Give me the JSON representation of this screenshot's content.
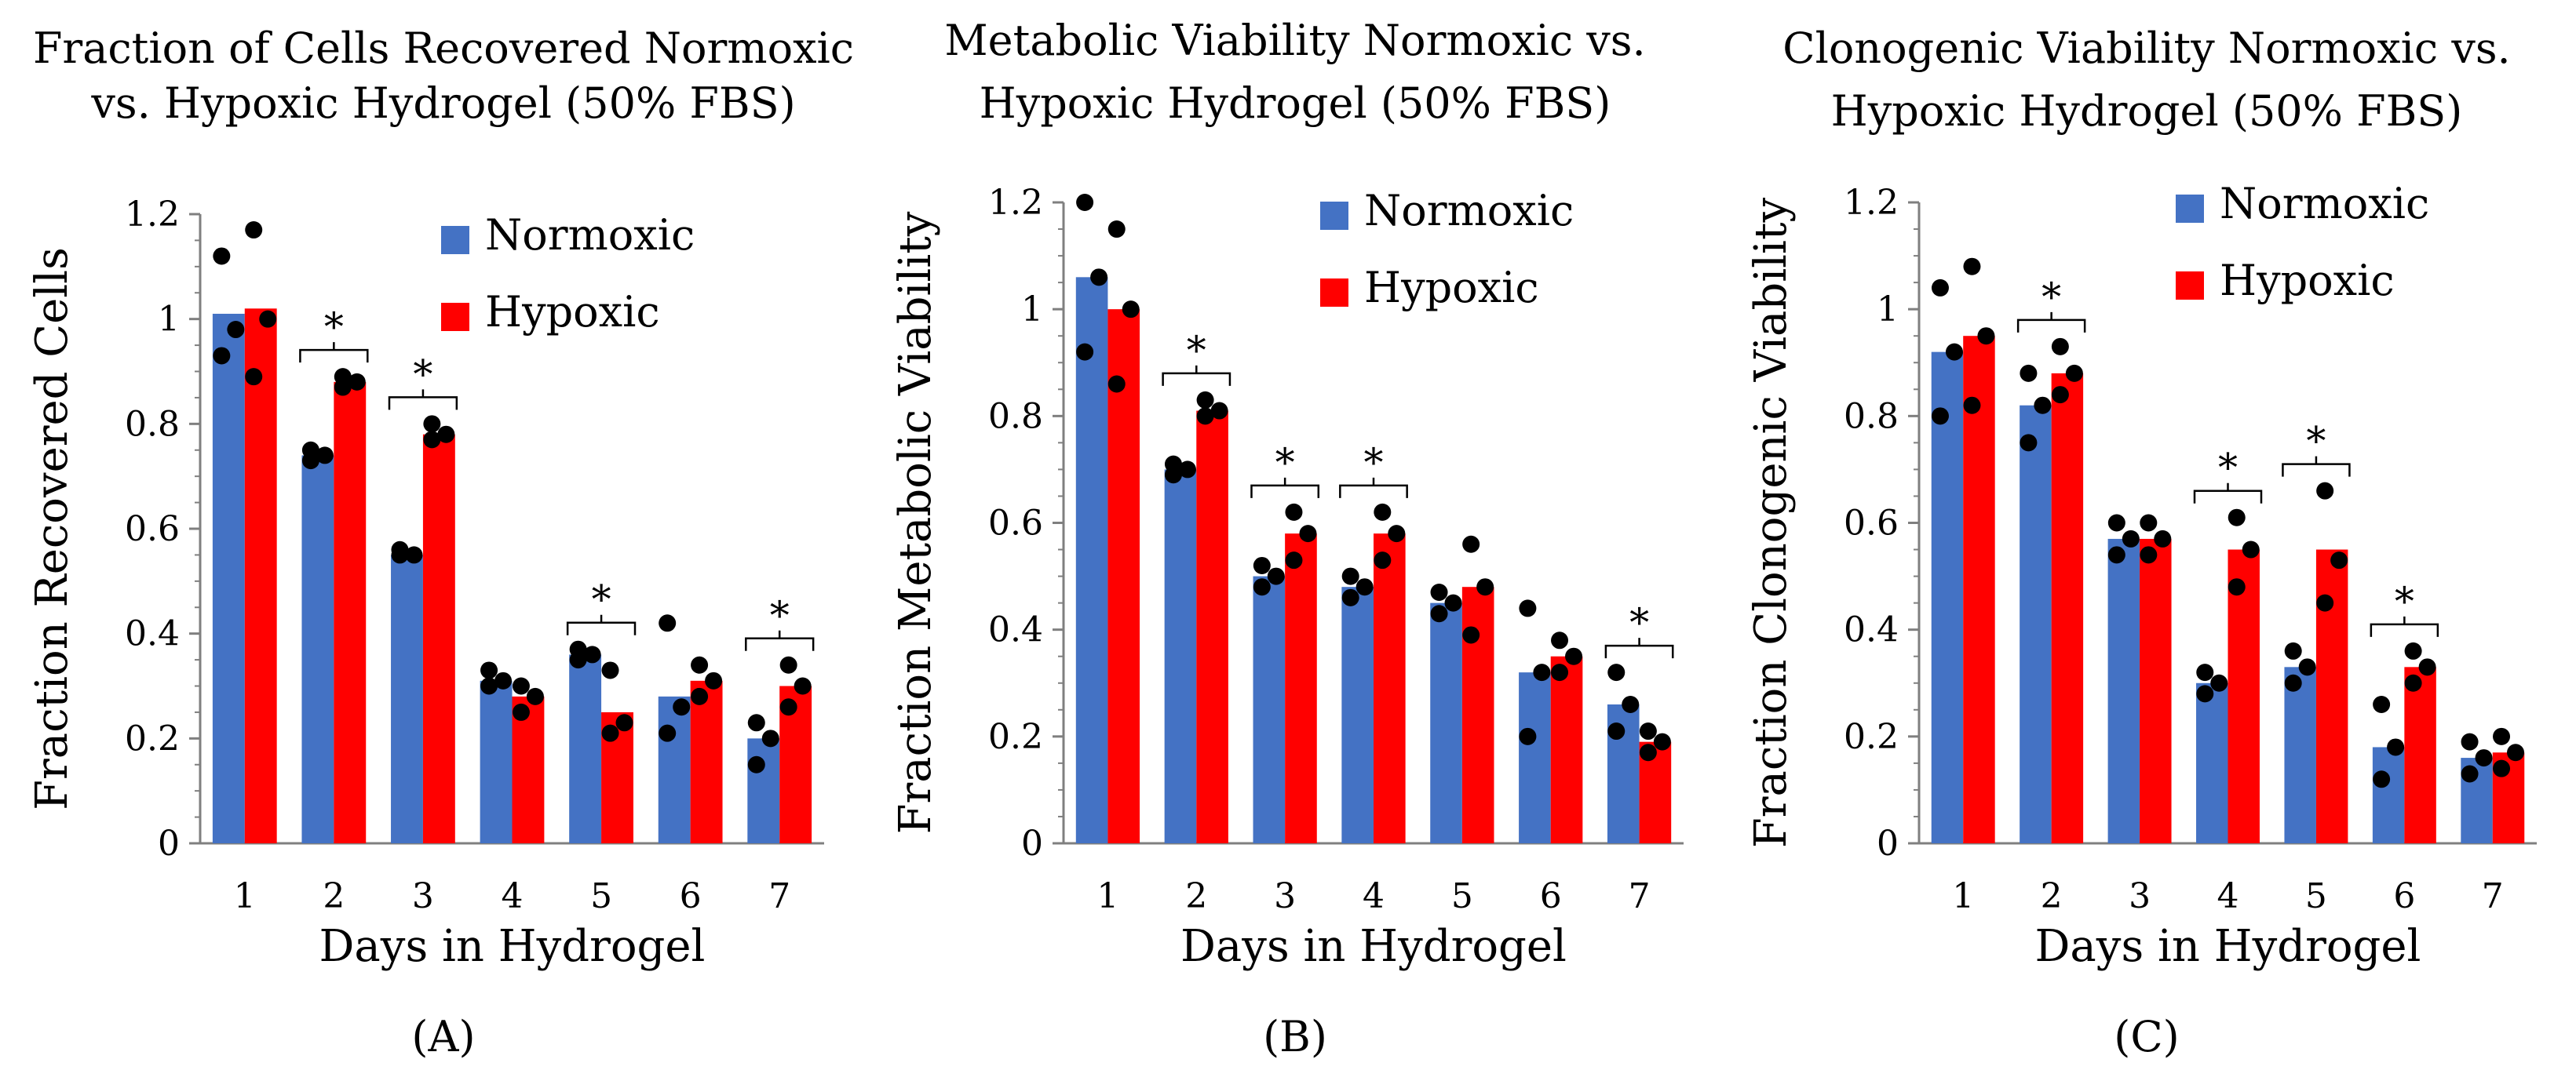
{
  "colors": {
    "normoxic": "#4472C4",
    "hypoxic": "#FF0000",
    "dot": "#000000",
    "axis": "#7f7f7f"
  },
  "chart_data": [
    {
      "type": "bar",
      "panel_label": "(A)",
      "title_lines": [
        "Fraction of Cells Recovered Normoxic",
        "vs. Hypoxic Hydrogel (50% FBS)"
      ],
      "xlabel": "Days in Hydrogel",
      "ylabel": "Fraction Recovered Cells",
      "ylim": [
        0,
        1.2
      ],
      "yticks": [
        "0",
        "0.2",
        "0.4",
        "0.6",
        "0.8",
        "1",
        "1.2"
      ],
      "categories": [
        "1",
        "2",
        "3",
        "4",
        "5",
        "6",
        "7"
      ],
      "series": [
        {
          "name": "Normoxic",
          "values": [
            1.01,
            0.74,
            0.55,
            0.31,
            0.36,
            0.28,
            0.2
          ],
          "points": [
            [
              0.93,
              0.98,
              1.12
            ],
            [
              0.73,
              0.74,
              0.75
            ],
            [
              0.55,
              0.55,
              0.56
            ],
            [
              0.3,
              0.31,
              0.33
            ],
            [
              0.35,
              0.36,
              0.37
            ],
            [
              0.21,
              0.26,
              0.42
            ],
            [
              0.15,
              0.2,
              0.23
            ]
          ]
        },
        {
          "name": "Hypoxic",
          "values": [
            1.02,
            0.88,
            0.78,
            0.28,
            0.25,
            0.31,
            0.3
          ],
          "points": [
            [
              0.89,
              1.0,
              1.17
            ],
            [
              0.87,
              0.88,
              0.89
            ],
            [
              0.77,
              0.78,
              0.8
            ],
            [
              0.25,
              0.28,
              0.3
            ],
            [
              0.21,
              0.23,
              0.33
            ],
            [
              0.28,
              0.31,
              0.34
            ],
            [
              0.26,
              0.3,
              0.34
            ]
          ]
        }
      ],
      "significance": [
        "2",
        "3",
        "5",
        "7"
      ],
      "legend": [
        "Normoxic",
        "Hypoxic"
      ]
    },
    {
      "type": "bar",
      "panel_label": "(B)",
      "title_lines": [
        "Metabolic Viability Normoxic vs.",
        "Hypoxic Hydrogel (50% FBS)"
      ],
      "xlabel": "Days in Hydrogel",
      "ylabel": "Fraction Metabolic Viability",
      "ylim": [
        0,
        1.2
      ],
      "yticks": [
        "0",
        "0.2",
        "0.4",
        "0.6",
        "0.8",
        "1",
        "1.2"
      ],
      "categories": [
        "1",
        "2",
        "3",
        "4",
        "5",
        "6",
        "7"
      ],
      "series": [
        {
          "name": "Normoxic",
          "values": [
            1.06,
            0.7,
            0.5,
            0.48,
            0.45,
            0.32,
            0.26
          ],
          "points": [
            [
              0.92,
              1.06,
              1.2
            ],
            [
              0.69,
              0.7,
              0.71
            ],
            [
              0.48,
              0.5,
              0.52
            ],
            [
              0.46,
              0.48,
              0.5
            ],
            [
              0.43,
              0.45,
              0.47
            ],
            [
              0.2,
              0.32,
              0.44
            ],
            [
              0.21,
              0.26,
              0.32
            ]
          ]
        },
        {
          "name": "Hypoxic",
          "values": [
            1.0,
            0.81,
            0.58,
            0.58,
            0.48,
            0.35,
            0.19
          ],
          "points": [
            [
              0.86,
              1.0,
              1.15
            ],
            [
              0.8,
              0.81,
              0.83
            ],
            [
              0.53,
              0.58,
              0.62
            ],
            [
              0.53,
              0.58,
              0.62
            ],
            [
              0.39,
              0.48,
              0.56
            ],
            [
              0.32,
              0.35,
              0.38
            ],
            [
              0.17,
              0.19,
              0.21
            ]
          ]
        }
      ],
      "significance": [
        "2",
        "3",
        "4",
        "7"
      ],
      "legend": [
        "Normoxic",
        "Hypoxic"
      ]
    },
    {
      "type": "bar",
      "panel_label": "(C)",
      "title_lines": [
        "Clonogenic Viability Normoxic vs.",
        "Hypoxic Hydrogel (50% FBS)"
      ],
      "xlabel": "Days in Hydrogel",
      "ylabel": "Fraction Clonogenic Viability",
      "ylim": [
        0,
        1.2
      ],
      "yticks": [
        "0",
        "0.2",
        "0.4",
        "0.6",
        "0.8",
        "1",
        "1.2"
      ],
      "categories": [
        "1",
        "2",
        "3",
        "4",
        "5",
        "6",
        "7"
      ],
      "series": [
        {
          "name": "Normoxic",
          "values": [
            0.92,
            0.82,
            0.57,
            0.3,
            0.33,
            0.18,
            0.16
          ],
          "points": [
            [
              0.8,
              0.92,
              1.04
            ],
            [
              0.75,
              0.82,
              0.88
            ],
            [
              0.54,
              0.57,
              0.6
            ],
            [
              0.28,
              0.3,
              0.32
            ],
            [
              0.3,
              0.33,
              0.36
            ],
            [
              0.12,
              0.18,
              0.26
            ],
            [
              0.13,
              0.16,
              0.19
            ]
          ]
        },
        {
          "name": "Hypoxic",
          "values": [
            0.95,
            0.88,
            0.57,
            0.55,
            0.55,
            0.33,
            0.17
          ],
          "points": [
            [
              0.82,
              0.95,
              1.08
            ],
            [
              0.84,
              0.88,
              0.93
            ],
            [
              0.54,
              0.57,
              0.6
            ],
            [
              0.48,
              0.55,
              0.61
            ],
            [
              0.45,
              0.53,
              0.66
            ],
            [
              0.3,
              0.33,
              0.36
            ],
            [
              0.14,
              0.17,
              0.2
            ]
          ]
        }
      ],
      "significance": [
        "2",
        "4",
        "5",
        "6"
      ],
      "legend": [
        "Normoxic",
        "Hypoxic"
      ]
    }
  ]
}
